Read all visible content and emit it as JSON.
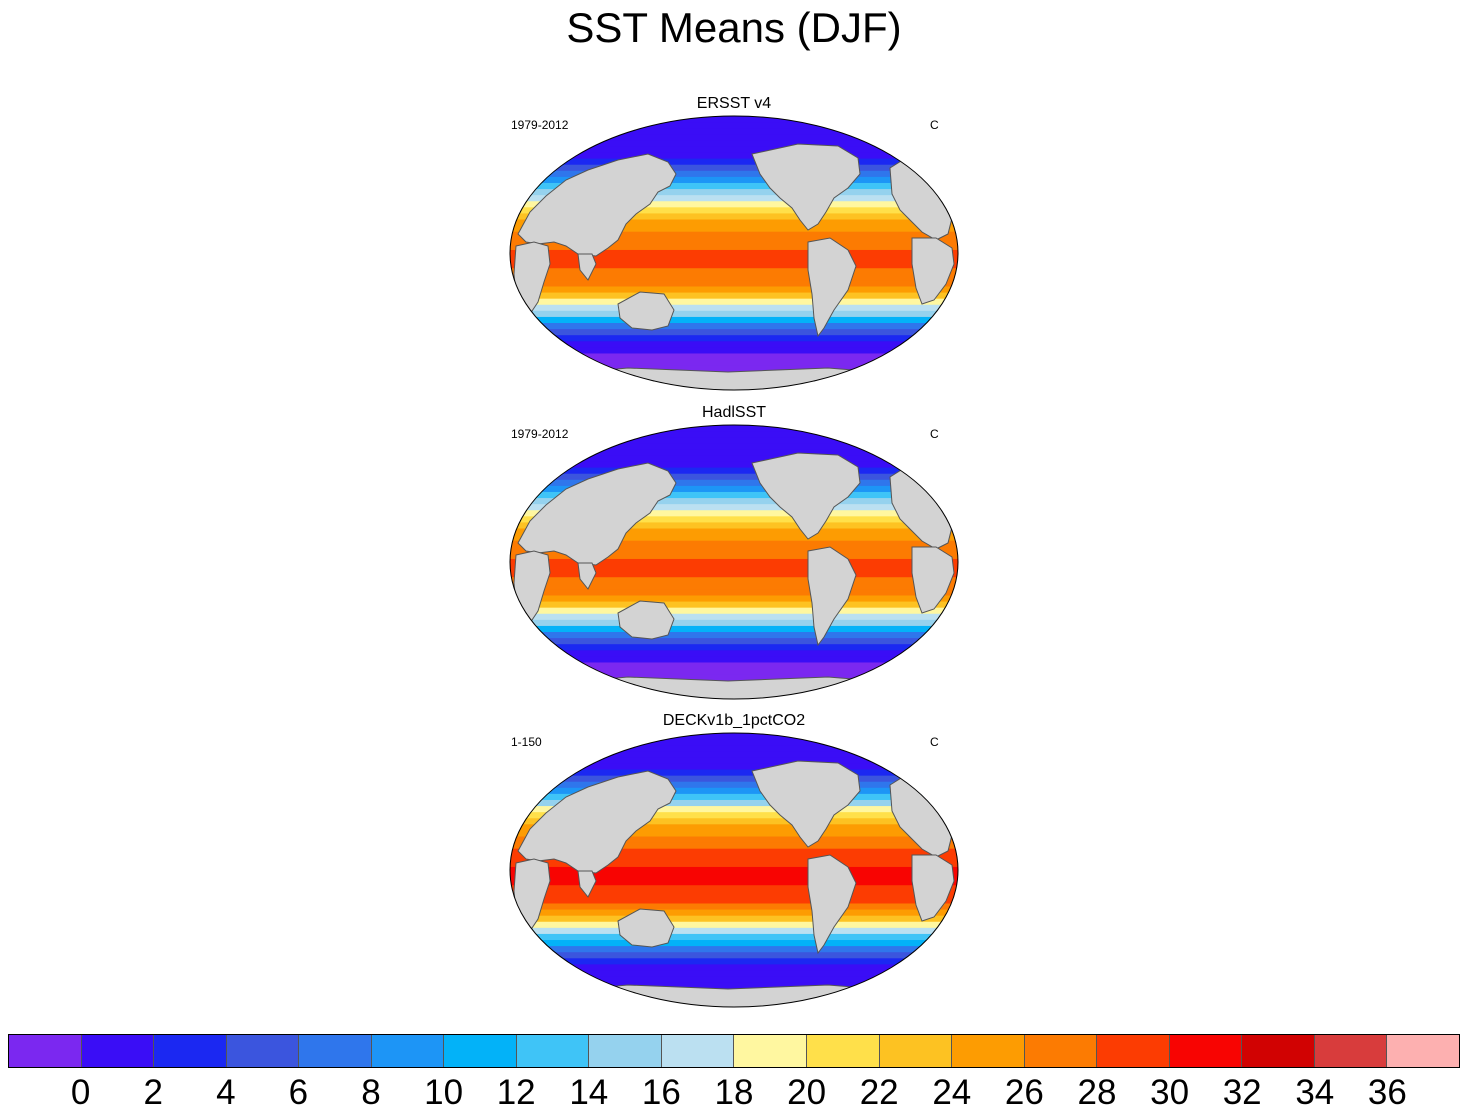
{
  "title": "SST Means (DJF)",
  "colors": {
    "land": "#d3d3d3",
    "coast": "#555555",
    "levels": [
      "#7b28f0",
      "#3a0df6",
      "#1b28f2",
      "#3b55de",
      "#2f76ec",
      "#1d95f6",
      "#03b2f8",
      "#3fc4f7",
      "#95d2ee",
      "#bbe0f1",
      "#fff7a0",
      "#ffe04a",
      "#fdc222",
      "#fd9c02",
      "#fc7b02",
      "#fc3c02",
      "#f80402",
      "#d10202",
      "#d83c3c",
      "#fdb0b0"
    ]
  },
  "chart_data": {
    "type": "heatmap",
    "title": "SST Means (DJF)",
    "projection": "Robinson (global, centered on Pacific)",
    "units": "C",
    "panels": [
      {
        "title": "ERSST v4",
        "period": "1979-2012",
        "units": "C",
        "zonal_mean_sst": {
          "lat": [
            70,
            60,
            50,
            40,
            30,
            20,
            10,
            0,
            -10,
            -20,
            -30,
            -40,
            -50,
            -60,
            -70
          ],
          "sst": [
            0,
            3,
            8,
            15,
            20,
            24,
            27,
            28,
            28,
            26,
            21,
            14,
            6,
            1,
            -1
          ]
        }
      },
      {
        "title": "HadlSST",
        "period": "1979-2012",
        "units": "C",
        "zonal_mean_sst": {
          "lat": [
            70,
            60,
            50,
            40,
            30,
            20,
            10,
            0,
            -10,
            -20,
            -30,
            -40,
            -50,
            -60,
            -70
          ],
          "sst": [
            0,
            3,
            8,
            15,
            20,
            24,
            27,
            28,
            28,
            26,
            21,
            14,
            6,
            1,
            -1
          ]
        }
      },
      {
        "title": "DECKv1b_1pctCO2",
        "period": "1-150",
        "units": "C",
        "zonal_mean_sst": {
          "lat": [
            70,
            60,
            50,
            40,
            30,
            20,
            10,
            0,
            -10,
            -20,
            -30,
            -40,
            -50,
            -60,
            -70
          ],
          "sst": [
            1,
            5,
            11,
            18,
            24,
            27,
            29,
            30,
            30,
            28,
            24,
            17,
            9,
            3,
            0
          ]
        }
      }
    ],
    "colorbar": {
      "levels": [
        0,
        2,
        4,
        6,
        8,
        10,
        12,
        14,
        16,
        18,
        20,
        22,
        24,
        26,
        28,
        30,
        32,
        34,
        36
      ],
      "tick_labels": [
        "0",
        "2",
        "4",
        "6",
        "8",
        "10",
        "12",
        "14",
        "16",
        "18",
        "20",
        "22",
        "24",
        "26",
        "28",
        "30",
        "32",
        "34",
        "36"
      ]
    }
  }
}
